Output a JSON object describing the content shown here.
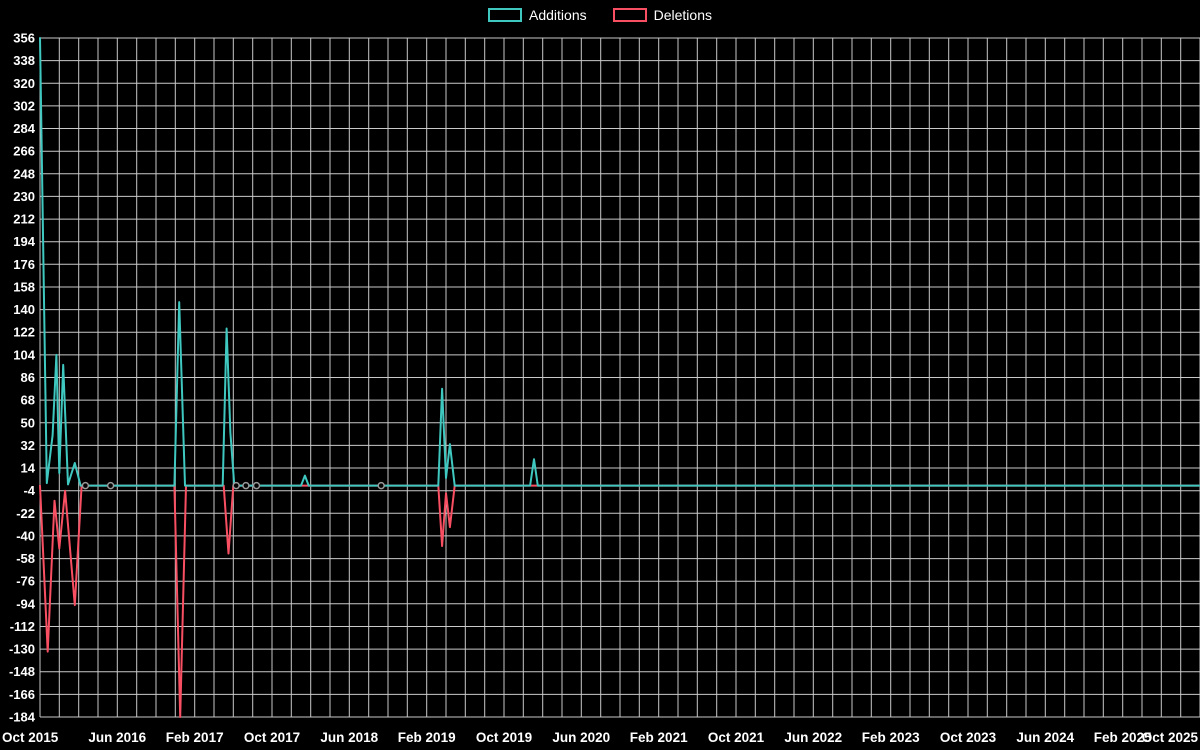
{
  "page": {
    "background": "#000000"
  },
  "chart_data": {
    "type": "line",
    "title": "",
    "xlabel": "",
    "ylabel": "",
    "legend_position": "top-center",
    "x_labels": [
      "Oct 2015",
      "Jun 2016",
      "Feb 2017",
      "Oct 2017",
      "Jun 2018",
      "Feb 2019",
      "Oct 2019",
      "Jun 2020",
      "Feb 2021",
      "Oct 2021",
      "Jun 2022",
      "Feb 2023",
      "Oct 2023",
      "Jun 2024",
      "Feb 2025",
      "Oct 2025"
    ],
    "x_label_interval_months": 8,
    "total_months": 120,
    "grid": true,
    "grid_x_step_months": 2,
    "y_ticks": [
      356,
      338,
      320,
      302,
      284,
      266,
      248,
      230,
      212,
      194,
      176,
      158,
      140,
      122,
      104,
      86,
      68,
      50,
      32,
      14,
      -4,
      -22,
      -40,
      -58,
      -76,
      -94,
      -112,
      -130,
      -148,
      -166,
      -184
    ],
    "ylim": [
      -184,
      356
    ],
    "layout": {
      "background": "#000000",
      "grid_color": "#c9c9c9",
      "text_color": "#ffffff"
    },
    "points_format": "[months_after_Oct_2015, value]",
    "zero_markers": [
      4.7,
      7.3,
      20.3,
      21.3,
      22.4,
      35.3
    ],
    "series": [
      {
        "name": "Additions",
        "color": "#3fc8c0",
        "points": [
          [
            0,
            356
          ],
          [
            0.7,
            2
          ],
          [
            1.3,
            40
          ],
          [
            1.7,
            104
          ],
          [
            2.0,
            10
          ],
          [
            2.4,
            96
          ],
          [
            2.9,
            1
          ],
          [
            3.6,
            18
          ],
          [
            4.2,
            0
          ],
          [
            13.9,
            0
          ],
          [
            14.4,
            146
          ],
          [
            15.0,
            0
          ],
          [
            18.9,
            0
          ],
          [
            19.3,
            125
          ],
          [
            19.7,
            42
          ],
          [
            20.1,
            0
          ],
          [
            27.0,
            0
          ],
          [
            27.4,
            8
          ],
          [
            27.8,
            0
          ],
          [
            41.2,
            0
          ],
          [
            41.6,
            77
          ],
          [
            42.0,
            6
          ],
          [
            42.4,
            33
          ],
          [
            42.9,
            0
          ],
          [
            50.7,
            0
          ],
          [
            51.1,
            21
          ],
          [
            51.5,
            0
          ],
          [
            120,
            0
          ]
        ]
      },
      {
        "name": "Deletions",
        "color": "#f94f63",
        "points": [
          [
            0,
            0
          ],
          [
            0.8,
            -132
          ],
          [
            1.5,
            -12
          ],
          [
            2.0,
            -50
          ],
          [
            2.6,
            -4
          ],
          [
            3.6,
            -95
          ],
          [
            4.3,
            0
          ],
          [
            13.9,
            0
          ],
          [
            14.5,
            -184
          ],
          [
            15.1,
            0
          ],
          [
            19.0,
            0
          ],
          [
            19.5,
            -54
          ],
          [
            20.0,
            0
          ],
          [
            41.2,
            0
          ],
          [
            41.6,
            -48
          ],
          [
            42.0,
            -6
          ],
          [
            42.4,
            -33
          ],
          [
            42.9,
            0
          ],
          [
            120,
            0
          ]
        ]
      }
    ]
  }
}
